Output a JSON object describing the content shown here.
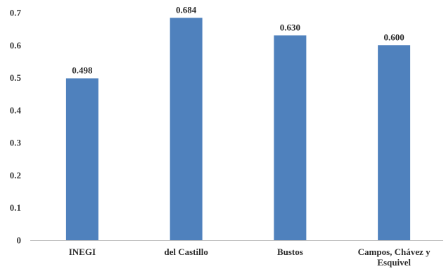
{
  "chart_data": {
    "type": "bar",
    "categories": [
      "INEGI",
      "del Castillo",
      "Bustos",
      "Campos, Chávez y Esquivel"
    ],
    "category_lines": [
      [
        "INEGI"
      ],
      [
        "del Castillo"
      ],
      [
        "Bustos"
      ],
      [
        "Campos, Chávez y",
        "Esquivel"
      ]
    ],
    "values": [
      0.498,
      0.684,
      0.63,
      0.6
    ],
    "data_labels": [
      "0.498",
      "0.684",
      "0.630",
      "0.600"
    ],
    "yticks": [
      "0",
      "0.1",
      "0.2",
      "0.3",
      "0.4",
      "0.5",
      "0.6",
      "0.7"
    ],
    "ylim": [
      0,
      0.7
    ],
    "title": "",
    "xlabel": "",
    "ylabel": "",
    "grid": false,
    "legend": "none",
    "colors": {
      "bar": "#4f81bd",
      "axis": "#bfbfbf"
    }
  }
}
